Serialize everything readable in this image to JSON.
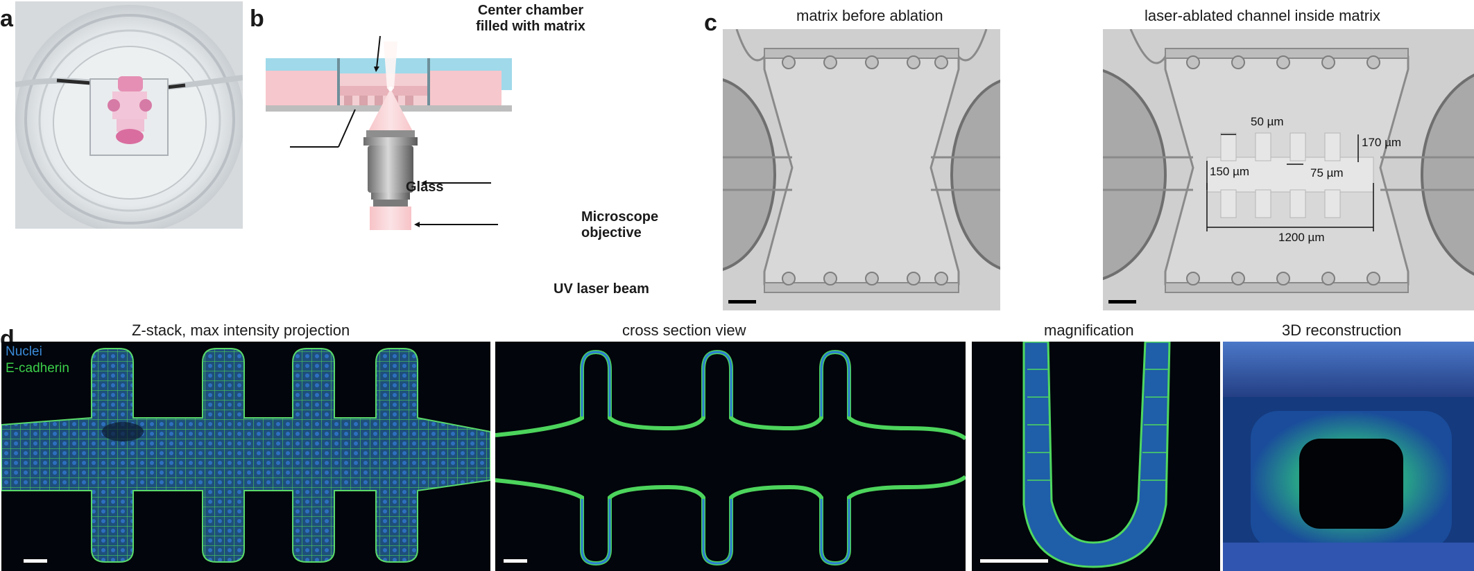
{
  "panels": {
    "a": {
      "letter": "a"
    },
    "b": {
      "letter": "b",
      "label_chamber": "Center chamber\nfilled with matrix",
      "label_glass": "Glass",
      "label_objective": "Microscope\nobjective",
      "label_laser": "UV laser beam"
    },
    "c": {
      "letter": "c",
      "title_left": "matrix before ablation",
      "title_right": "laser-ablated channel inside matrix",
      "dim_50": "50 µm",
      "dim_170": "170 µm",
      "dim_150": "150 µm",
      "dim_75": "75 µm",
      "dim_1200": "1200 µm"
    },
    "d": {
      "letter": "d",
      "title_1": "Z-stack, max intensity projection",
      "title_2": "cross section view",
      "title_3": "magnification",
      "title_4": "3D reconstruction",
      "legend_nuclei": "Nuclei",
      "legend_ecad": "E-cadherin"
    }
  },
  "colors": {
    "matrix_blue": "#9fd9ea",
    "chamber_pink": "#f6c7cc",
    "glass_gray": "#bdbdbd",
    "nuclei": "#3a8ad8",
    "ecadherin": "#3ccf4a"
  }
}
